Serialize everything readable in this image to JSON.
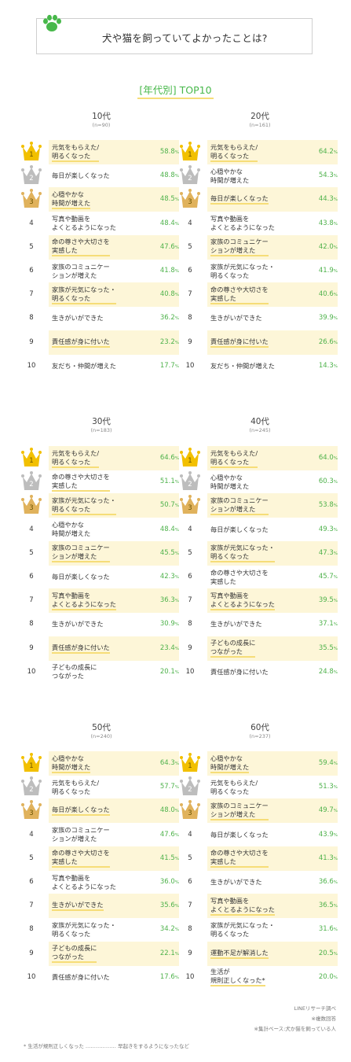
{
  "header": {
    "title": "犬や猫を飼っていてよかったことは?",
    "subtitle": "[年代別] TOP10"
  },
  "colors": {
    "accent_green": "#47b84a",
    "value_green": "#4eb24b",
    "highlight_yellow": "#fdf6d8",
    "gold_crown": "#f2c000",
    "silver_crown": "#bdbdbd",
    "bronze_crown": "#e0b25c"
  },
  "chart_data": [
    {
      "type": "table",
      "title": "10代",
      "n": "(n=90)",
      "unit": "%",
      "items": [
        {
          "rank": "1",
          "label": "元気をもらえた/\n明るくなった",
          "value": 58.8,
          "value_text": "58.8"
        },
        {
          "rank": "2",
          "label": "毎日が楽しくなった",
          "value": 48.8,
          "value_text": "48.8"
        },
        {
          "rank": "3",
          "label": "心穏やかな\n時間が増えた",
          "value": 48.5,
          "value_text": "48.5"
        },
        {
          "rank": "4",
          "label": "写真や動画を\nよくとるようになった",
          "value": 48.4,
          "value_text": "48.4"
        },
        {
          "rank": "5",
          "label": "命の尊さや大切さを\n実感した",
          "value": 47.6,
          "value_text": "47.6"
        },
        {
          "rank": "6",
          "label": "家族のコミュニケー\nションが増えた",
          "value": 41.8,
          "value_text": "41.8"
        },
        {
          "rank": "7",
          "label": "家族が元気になった・\n明るくなった",
          "value": 40.8,
          "value_text": "40.8"
        },
        {
          "rank": "8",
          "label": "生きがいができた",
          "value": 36.2,
          "value_text": "36.2"
        },
        {
          "rank": "9",
          "label": "責任感が身に付いた",
          "value": 23.2,
          "value_text": "23.2"
        },
        {
          "rank": "10",
          "label": "友だち・仲間が増えた",
          "value": 17.7,
          "value_text": "17.7"
        }
      ]
    },
    {
      "type": "table",
      "title": "20代",
      "n": "(n=161)",
      "unit": "%",
      "items": [
        {
          "rank": "1",
          "label": "元気をもらえた/\n明るくなった",
          "value": 64.2,
          "value_text": "64.2"
        },
        {
          "rank": "2",
          "label": "心穏やかな\n時間が増えた",
          "value": 54.3,
          "value_text": "54.3"
        },
        {
          "rank": "3",
          "label": "毎日が楽しくなった",
          "value": 44.3,
          "value_text": "44.3"
        },
        {
          "rank": "4",
          "label": "写真や動画を\nよくとるようになった",
          "value": 43.8,
          "value_text": "43.8"
        },
        {
          "rank": "5",
          "label": "家族のコミュニケー\nションが増えた",
          "value": 42.0,
          "value_text": "42.0"
        },
        {
          "rank": "6",
          "label": "家族が元気になった・\n明るくなった",
          "value": 41.9,
          "value_text": "41.9"
        },
        {
          "rank": "7",
          "label": "命の尊さや大切さを\n実感した",
          "value": 40.6,
          "value_text": "40.6"
        },
        {
          "rank": "8",
          "label": "生きがいができた",
          "value": 39.9,
          "value_text": "39.9"
        },
        {
          "rank": "9",
          "label": "責任感が身に付いた",
          "value": 26.6,
          "value_text": "26.6"
        },
        {
          "rank": "10",
          "label": "友だち・仲間が増えた",
          "value": 14.3,
          "value_text": "14.3"
        }
      ]
    },
    {
      "type": "table",
      "title": "30代",
      "n": "(n=183)",
      "unit": "%",
      "items": [
        {
          "rank": "1",
          "label": "元気をもらえた/\n明るくなった",
          "value": 64.6,
          "value_text": "64.6"
        },
        {
          "rank": "2",
          "label": "命の尊さや大切さを\n実感した",
          "value": 51.1,
          "value_text": "51.1"
        },
        {
          "rank": "3",
          "label": "家族が元気になった・\n明るくなった",
          "value": 50.7,
          "value_text": "50.7"
        },
        {
          "rank": "4",
          "label": "心穏やかな\n時間が増えた",
          "value": 48.4,
          "value_text": "48.4"
        },
        {
          "rank": "5",
          "label": "家族のコミュニケー\nションが増えた",
          "value": 45.5,
          "value_text": "45.5"
        },
        {
          "rank": "6",
          "label": "毎日が楽しくなった",
          "value": 42.3,
          "value_text": "42.3"
        },
        {
          "rank": "7",
          "label": "写真や動画を\nよくとるようになった",
          "value": 36.3,
          "value_text": "36.3"
        },
        {
          "rank": "8",
          "label": "生きがいができた",
          "value": 30.9,
          "value_text": "30.9"
        },
        {
          "rank": "9",
          "label": "責任感が身に付いた",
          "value": 23.4,
          "value_text": "23.4"
        },
        {
          "rank": "10",
          "label": "子どもの成長に\nつながった",
          "value": 20.1,
          "value_text": "20.1"
        }
      ]
    },
    {
      "type": "table",
      "title": "40代",
      "n": "(n=245)",
      "unit": "%",
      "items": [
        {
          "rank": "1",
          "label": "元気をもらえた/\n明るくなった",
          "value": 64.0,
          "value_text": "64.0"
        },
        {
          "rank": "2",
          "label": "心穏やかな\n時間が増えた",
          "value": 60.3,
          "value_text": "60.3"
        },
        {
          "rank": "3",
          "label": "家族のコミュニケー\nションが増えた",
          "value": 53.8,
          "value_text": "53.8"
        },
        {
          "rank": "4",
          "label": "毎日が楽しくなった",
          "value": 49.3,
          "value_text": "49.3"
        },
        {
          "rank": "5",
          "label": "家族が元気になった・\n明るくなった",
          "value": 47.3,
          "value_text": "47.3"
        },
        {
          "rank": "6",
          "label": "命の尊さや大切さを\n実感した",
          "value": 45.7,
          "value_text": "45.7"
        },
        {
          "rank": "7",
          "label": "写真や動画を\nよくとるようになった",
          "value": 39.5,
          "value_text": "39.5"
        },
        {
          "rank": "8",
          "label": "生きがいができた",
          "value": 37.1,
          "value_text": "37.1"
        },
        {
          "rank": "9",
          "label": "子どもの成長に\nつながった",
          "value": 35.5,
          "value_text": "35.5"
        },
        {
          "rank": "10",
          "label": "責任感が身に付いた",
          "value": 24.8,
          "value_text": "24.8"
        }
      ]
    },
    {
      "type": "table",
      "title": "50代",
      "n": "(n=240)",
      "unit": "%",
      "items": [
        {
          "rank": "1",
          "label": "心穏やかな\n時間が増えた",
          "value": 64.3,
          "value_text": "64.3"
        },
        {
          "rank": "2",
          "label": "元気をもらえた/\n明るくなった",
          "value": 57.7,
          "value_text": "57.7"
        },
        {
          "rank": "3",
          "label": "毎日が楽しくなった",
          "value": 48.0,
          "value_text": "48.0"
        },
        {
          "rank": "4",
          "label": "家族のコミュニケー\nションが増えた",
          "value": 47.6,
          "value_text": "47.6"
        },
        {
          "rank": "5",
          "label": "命の尊さや大切さを\n実感した",
          "value": 41.5,
          "value_text": "41.5"
        },
        {
          "rank": "6",
          "label": "写真や動画を\nよくとるようになった",
          "value": 36.0,
          "value_text": "36.0"
        },
        {
          "rank": "7",
          "label": "生きがいができた",
          "value": 35.6,
          "value_text": "35.6"
        },
        {
          "rank": "8",
          "label": "家族が元気になった・\n明るくなった",
          "value": 34.2,
          "value_text": "34.2"
        },
        {
          "rank": "9",
          "label": "子どもの成長に\nつながった",
          "value": 22.1,
          "value_text": "22.1"
        },
        {
          "rank": "10",
          "label": "責任感が身に付いた",
          "value": 17.6,
          "value_text": "17.6"
        }
      ]
    },
    {
      "type": "table",
      "title": "60代",
      "n": "(n=237)",
      "unit": "%",
      "items": [
        {
          "rank": "1",
          "label": "心穏やかな\n時間が増えた",
          "value": 59.4,
          "value_text": "59.4"
        },
        {
          "rank": "2",
          "label": "元気をもらえた/\n明るくなった",
          "value": 51.3,
          "value_text": "51.3"
        },
        {
          "rank": "3",
          "label": "家族のコミュニケー\nションが増えた",
          "value": 49.7,
          "value_text": "49.7"
        },
        {
          "rank": "4",
          "label": "毎日が楽しくなった",
          "value": 43.9,
          "value_text": "43.9"
        },
        {
          "rank": "5",
          "label": "命の尊さや大切さを\n実感した",
          "value": 41.3,
          "value_text": "41.3"
        },
        {
          "rank": "6",
          "label": "生きがいができた",
          "value": 36.6,
          "value_text": "36.6"
        },
        {
          "rank": "7",
          "label": "写真や動画を\nよくとるようになった",
          "value": 36.5,
          "value_text": "36.5"
        },
        {
          "rank": "8",
          "label": "家族が元気になった・\n明るくなった",
          "value": 31.6,
          "value_text": "31.6"
        },
        {
          "rank": "9",
          "label": "運動不足が解消した",
          "value": 20.5,
          "value_text": "20.5"
        },
        {
          "rank": "10",
          "label": "生活が\n規則正しくなった*",
          "value": 20.0,
          "value_text": "20.0"
        }
      ]
    }
  ],
  "footer": {
    "source": "LINEリサーチ調べ",
    "multiple": "※複数回答",
    "base": "※集計ベース:犬か猫を飼っている人",
    "footnote": "* 生活が規則正しくなった ……………… 早起きをするようになったなど"
  }
}
